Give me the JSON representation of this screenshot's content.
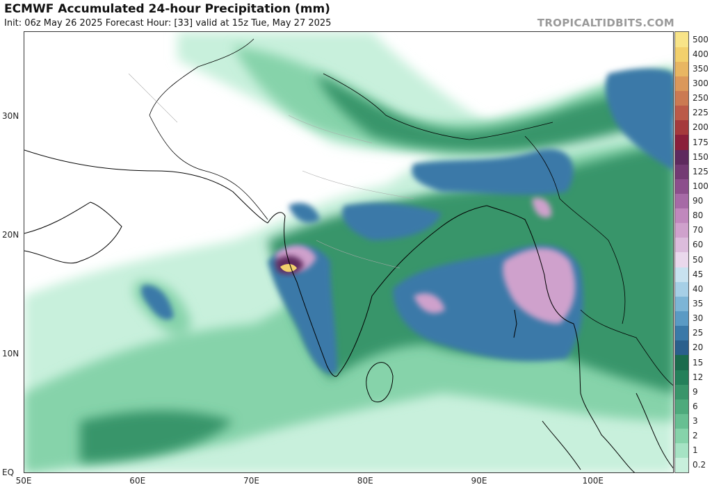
{
  "header": {
    "title": "ECMWF Accumulated 24-hour Precipitation (mm)",
    "subtitle": "Init: 06z May 26 2025   Forecast Hour: [33]   valid at 15z Tue, May 27 2025",
    "credit": "TROPICALTIDBITS.COM"
  },
  "axes": {
    "lat_labels": [
      {
        "text": "30N",
        "lat": 30
      },
      {
        "text": "20N",
        "lat": 20
      },
      {
        "text": "10N",
        "lat": 10
      },
      {
        "text": "EQ",
        "lat": 0
      }
    ],
    "lon_labels": [
      {
        "text": "50E",
        "lon": 50
      },
      {
        "text": "60E",
        "lon": 60
      },
      {
        "text": "70E",
        "lon": 70
      },
      {
        "text": "80E",
        "lon": 80
      },
      {
        "text": "90E",
        "lon": 90
      },
      {
        "text": "100E",
        "lon": 100
      }
    ]
  },
  "colorbar": {
    "levels": [
      "0.2",
      "1",
      "2",
      "3",
      "6",
      "9",
      "12",
      "15",
      "20",
      "25",
      "30",
      "35",
      "40",
      "45",
      "50",
      "60",
      "70",
      "80",
      "90",
      "100",
      "125",
      "150",
      "175",
      "200",
      "225",
      "250",
      "300",
      "350",
      "400",
      "500"
    ],
    "colors": [
      "#c8f0dc",
      "#a6e3c4",
      "#86d3aa",
      "#68bf92",
      "#4eaa7c",
      "#39956a",
      "#24805a",
      "#1a6b4c",
      "#2a5f8c",
      "#3a79a8",
      "#5a9ac4",
      "#7db5d6",
      "#a6cfe6",
      "#c8e2f0",
      "#ead8ec",
      "#dcbcdc",
      "#cfa1cc",
      "#c088bd",
      "#a66aa6",
      "#8c4f8c",
      "#733a73",
      "#5e2a5e",
      "#8a1f3a",
      "#a53a3c",
      "#bb5a48",
      "#cb7a52",
      "#db985a",
      "#e8b662",
      "#f2d06c",
      "#f8e488"
    ]
  },
  "legend": {
    "precip_colors": {
      "very_light": "#c8f0dc",
      "light": "#86d3aa",
      "moderate": "#39956a",
      "heavy": "#3a79a8",
      "very_heavy": "#cfa1cc",
      "extreme": "#5e2a5e",
      "peak": "#f2d06c"
    },
    "land_color": "#ffffff",
    "ocean_color": "#ffffff"
  }
}
